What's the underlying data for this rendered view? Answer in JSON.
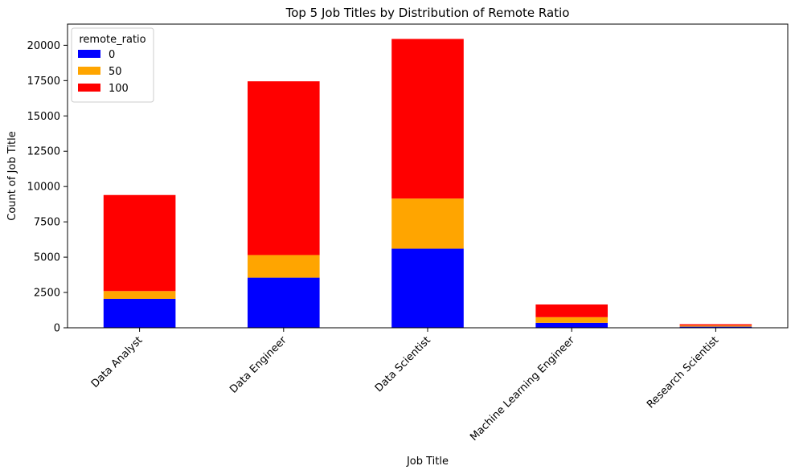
{
  "chart_data": {
    "type": "bar",
    "stacked": true,
    "title": "Top 5 Job Titles by Distribution of Remote Ratio",
    "xlabel": "Job Title",
    "ylabel": "Count of Job Title",
    "categories": [
      "Data Analyst",
      "Data Engineer",
      "Data Scientist",
      "Machine Learning Engineer",
      "Research Scientist"
    ],
    "series": [
      {
        "name": "0",
        "color": "#0000ff",
        "values": [
          2050,
          3550,
          5600,
          350,
          80
        ]
      },
      {
        "name": "50",
        "color": "#ffa500",
        "values": [
          550,
          1600,
          3550,
          400,
          80
        ]
      },
      {
        "name": "100",
        "color": "#ff0000",
        "values": [
          6800,
          12300,
          11300,
          900,
          90
        ]
      }
    ],
    "ylim": [
      0,
      21500
    ],
    "yticks": [
      0,
      2500,
      5000,
      7500,
      10000,
      12500,
      15000,
      17500,
      20000
    ],
    "legend": {
      "title": "remote_ratio",
      "position": "upper-left"
    },
    "grid": false
  }
}
